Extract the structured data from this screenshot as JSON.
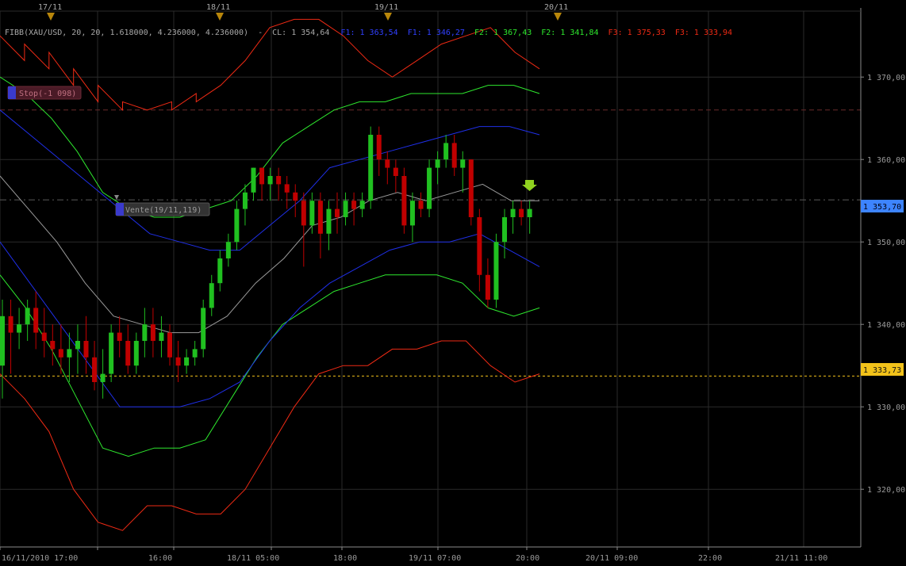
{
  "top_axis": {
    "dates": [
      "17/11",
      "18/11",
      "19/11",
      "20/11"
    ]
  },
  "indicator_header": {
    "name": "FIBB(XAU/USD, 20, 20, 1.618000, 4.236000, 4.236000)",
    "sep": "-",
    "cl": "CL: 1 354,64",
    "f1a": "F1: 1 363,54",
    "f1b": "F1: 1 346,27",
    "f2a": "F2: 1 367,43",
    "f2b": "F2: 1 341,84",
    "f3a": "F3: 1 375,33",
    "f3b": "F3: 1 333,94"
  },
  "orders": {
    "stop_label": "Stop(-1 098)",
    "sell_label": "Vente(19/11,119)"
  },
  "price_tags": {
    "current": "1 353,70",
    "level": "1 333,73"
  },
  "colors": {
    "up": "#20c020",
    "down": "#c00000",
    "band1": "#1f2fe8",
    "band2": "#2ee82e",
    "band3": "#ee2a14",
    "mid": "#9a9a9a",
    "current_tag": "#3d84ff",
    "level_tag": "#f2c21a",
    "arrow": "#8fd11f"
  },
  "chart_data": {
    "type": "candlestick",
    "symbol": "XAU/USD",
    "ylim": [
      1313,
      1378
    ],
    "y_ticks": [
      "1 320,00",
      "1 330,00",
      "1 340,00",
      "1 350,00",
      "1 360,00",
      "1 370,00"
    ],
    "y_tick_values": [
      1320,
      1330,
      1340,
      1350,
      1360,
      1370
    ],
    "x_ticks": [
      "16/11/2010 17:00",
      "16:00",
      "18/11 05:00",
      "18:00",
      "19/11 07:00",
      "20:00",
      "20/11 09:00",
      "22:00",
      "21/11 11:00"
    ],
    "horizontal_levels": [
      {
        "name": "stop",
        "value": 1366.0
      },
      {
        "name": "entry",
        "value": 1355.1
      },
      {
        "name": "target",
        "value": 1333.73
      }
    ],
    "candles": [
      [
        1335,
        1343,
        1331,
        1341
      ],
      [
        1341,
        1343,
        1334,
        1339
      ],
      [
        1339,
        1342,
        1337,
        1340
      ],
      [
        1340,
        1343,
        1338,
        1342
      ],
      [
        1342,
        1344,
        1337,
        1339
      ],
      [
        1339,
        1342,
        1336,
        1338
      ],
      [
        1338,
        1340,
        1335,
        1337
      ],
      [
        1337,
        1340,
        1334,
        1336
      ],
      [
        1336,
        1339,
        1333,
        1337
      ],
      [
        1337,
        1340,
        1334,
        1338
      ],
      [
        1338,
        1341,
        1334,
        1336
      ],
      [
        1336,
        1338,
        1332,
        1333
      ],
      [
        1333,
        1337,
        1331,
        1334
      ],
      [
        1334,
        1340,
        1333,
        1339
      ],
      [
        1339,
        1341,
        1336,
        1338
      ],
      [
        1338,
        1340,
        1334,
        1335
      ],
      [
        1335,
        1339,
        1334,
        1338
      ],
      [
        1338,
        1342,
        1336,
        1340
      ],
      [
        1340,
        1342,
        1336,
        1338
      ],
      [
        1338,
        1341,
        1336,
        1339
      ],
      [
        1339,
        1340,
        1335,
        1336
      ],
      [
        1336,
        1338,
        1333,
        1335
      ],
      [
        1335,
        1337,
        1334,
        1336
      ],
      [
        1336,
        1338,
        1335,
        1337
      ],
      [
        1337,
        1343,
        1336,
        1342
      ],
      [
        1342,
        1346,
        1341,
        1345
      ],
      [
        1345,
        1349,
        1344,
        1348
      ],
      [
        1348,
        1351,
        1347,
        1350
      ],
      [
        1350,
        1355,
        1349,
        1354
      ],
      [
        1354,
        1357,
        1352,
        1356
      ],
      [
        1356,
        1359,
        1355,
        1359
      ],
      [
        1359,
        1359,
        1355,
        1357
      ],
      [
        1357,
        1359,
        1355,
        1358
      ],
      [
        1358,
        1359,
        1355,
        1357
      ],
      [
        1357,
        1358,
        1354,
        1356
      ],
      [
        1356,
        1357,
        1353,
        1355
      ],
      [
        1355,
        1356,
        1347,
        1352
      ],
      [
        1352,
        1356,
        1351,
        1355
      ],
      [
        1355,
        1356,
        1348,
        1351
      ],
      [
        1351,
        1355,
        1349,
        1354
      ],
      [
        1354,
        1356,
        1351,
        1353
      ],
      [
        1353,
        1356,
        1352,
        1355
      ],
      [
        1355,
        1356,
        1352,
        1354
      ],
      [
        1354,
        1356,
        1353,
        1355
      ],
      [
        1355,
        1364,
        1354,
        1363
      ],
      [
        1363,
        1364,
        1358,
        1360
      ],
      [
        1360,
        1361,
        1357,
        1359
      ],
      [
        1359,
        1360,
        1356,
        1358
      ],
      [
        1358,
        1359,
        1351,
        1352
      ],
      [
        1352,
        1356,
        1350,
        1355
      ],
      [
        1355,
        1356,
        1353,
        1354
      ],
      [
        1354,
        1360,
        1353,
        1359
      ],
      [
        1359,
        1361,
        1357,
        1360
      ],
      [
        1360,
        1363,
        1359,
        1362
      ],
      [
        1362,
        1363,
        1358,
        1359
      ],
      [
        1359,
        1361,
        1356,
        1360
      ],
      [
        1360,
        1360,
        1352,
        1353
      ],
      [
        1353,
        1354,
        1344,
        1346
      ],
      [
        1346,
        1348,
        1342,
        1343
      ],
      [
        1343,
        1351,
        1342,
        1350
      ],
      [
        1350,
        1354,
        1348,
        1353
      ],
      [
        1353,
        1355,
        1351,
        1354
      ],
      [
        1354,
        1355,
        1352,
        1353
      ],
      [
        1353,
        1355,
        1351,
        1354
      ]
    ],
    "series": [
      {
        "name": "F3",
        "values": [
          [
            1375,
            1372
          ],
          [
            1374,
            1371
          ],
          [
            1373,
            1369
          ],
          [
            1371,
            1367
          ],
          [
            1369,
            1366
          ],
          [
            1367,
            1366
          ],
          [
            1366,
            1367
          ],
          [
            1366,
            1368
          ],
          [
            1367,
            1369
          ],
          [
            1369,
            1372
          ],
          [
            1372,
            1376
          ],
          [
            1376,
            1377
          ],
          [
            1377,
            1377
          ],
          [
            1377,
            1375
          ],
          [
            1375,
            1372
          ],
          [
            1372,
            1370
          ],
          [
            1370,
            1372
          ],
          [
            1372,
            1374
          ],
          [
            1374,
            1375
          ],
          [
            1375,
            1376
          ],
          [
            1376,
            1373
          ],
          [
            1373,
            1371
          ]
        ]
      },
      {
        "name": "F3",
        "values": [
          [
            1334,
            1331
          ],
          [
            1331,
            1327
          ],
          [
            1327,
            1320
          ],
          [
            1320,
            1316
          ],
          [
            1316,
            1315
          ],
          [
            1315,
            1318
          ],
          [
            1318,
            1318
          ],
          [
            1318,
            1317
          ],
          [
            1317,
            1317
          ],
          [
            1317,
            1320
          ],
          [
            1320,
            1325
          ],
          [
            1325,
            1330
          ],
          [
            1330,
            1334
          ],
          [
            1334,
            1335
          ],
          [
            1335,
            1335
          ],
          [
            1335,
            1337
          ],
          [
            1337,
            1337
          ],
          [
            1337,
            1338
          ],
          [
            1338,
            1338
          ],
          [
            1338,
            1335
          ],
          [
            1335,
            1333
          ],
          [
            1333,
            1334
          ]
        ]
      },
      {
        "name": "F2",
        "values": [
          [
            1370,
            1368
          ],
          [
            1368,
            1365
          ],
          [
            1365,
            1361
          ],
          [
            1361,
            1356
          ],
          [
            1356,
            1354
          ],
          [
            1354,
            1353
          ],
          [
            1353,
            1353
          ],
          [
            1353,
            1354
          ],
          [
            1354,
            1355
          ],
          [
            1355,
            1358
          ],
          [
            1358,
            1362
          ],
          [
            1362,
            1364
          ],
          [
            1364,
            1366
          ],
          [
            1366,
            1367
          ],
          [
            1367,
            1367
          ],
          [
            1367,
            1368
          ],
          [
            1368,
            1368
          ],
          [
            1368,
            1368
          ],
          [
            1368,
            1369
          ],
          [
            1369,
            1369
          ],
          [
            1369,
            1368
          ]
        ]
      },
      {
        "name": "F2",
        "values": [
          [
            1346,
            1342
          ],
          [
            1342,
            1337
          ],
          [
            1337,
            1331
          ],
          [
            1331,
            1325
          ],
          [
            1325,
            1324
          ],
          [
            1324,
            1325
          ],
          [
            1325,
            1325
          ],
          [
            1325,
            1326
          ],
          [
            1326,
            1331
          ],
          [
            1331,
            1336
          ],
          [
            1336,
            1340
          ],
          [
            1340,
            1342
          ],
          [
            1342,
            1344
          ],
          [
            1344,
            1345
          ],
          [
            1345,
            1346
          ],
          [
            1346,
            1346
          ],
          [
            1346,
            1346
          ],
          [
            1346,
            1345
          ],
          [
            1345,
            1342
          ],
          [
            1342,
            1341
          ],
          [
            1341,
            1342
          ]
        ]
      },
      {
        "name": "F1",
        "values": [
          [
            1366,
            1363
          ],
          [
            1363,
            1360
          ],
          [
            1360,
            1357
          ],
          [
            1357,
            1354
          ],
          [
            1354,
            1351
          ],
          [
            1351,
            1350
          ],
          [
            1350,
            1349
          ],
          [
            1349,
            1349
          ],
          [
            1349,
            1352
          ],
          [
            1352,
            1355
          ],
          [
            1355,
            1359
          ],
          [
            1359,
            1360
          ],
          [
            1360,
            1361
          ],
          [
            1361,
            1362
          ],
          [
            1362,
            1363
          ],
          [
            1363,
            1364
          ],
          [
            1364,
            1364
          ],
          [
            1364,
            1363
          ]
        ]
      },
      {
        "name": "F1",
        "values": [
          [
            1350,
            1345
          ],
          [
            1345,
            1340
          ],
          [
            1340,
            1335
          ],
          [
            1335,
            1330
          ],
          [
            1330,
            1330
          ],
          [
            1330,
            1330
          ],
          [
            1330,
            1331
          ],
          [
            1331,
            1333
          ],
          [
            1333,
            1338
          ],
          [
            1338,
            1342
          ],
          [
            1342,
            1345
          ],
          [
            1345,
            1347
          ],
          [
            1347,
            1349
          ],
          [
            1349,
            1350
          ],
          [
            1350,
            1350
          ],
          [
            1350,
            1351
          ],
          [
            1351,
            1349
          ],
          [
            1349,
            1347
          ]
        ]
      },
      {
        "name": "CL",
        "values": [
          [
            1358,
            1354
          ],
          [
            1354,
            1350
          ],
          [
            1350,
            1345
          ],
          [
            1345,
            1341
          ],
          [
            1341,
            1340
          ],
          [
            1340,
            1339
          ],
          [
            1339,
            1339
          ],
          [
            1339,
            1341
          ],
          [
            1341,
            1345
          ],
          [
            1345,
            1348
          ],
          [
            1348,
            1352
          ],
          [
            1352,
            1353
          ],
          [
            1353,
            1355
          ],
          [
            1355,
            1356
          ],
          [
            1356,
            1355
          ],
          [
            1355,
            1356
          ],
          [
            1356,
            1357
          ],
          [
            1357,
            1355
          ],
          [
            1355,
            1355
          ]
        ]
      }
    ]
  }
}
